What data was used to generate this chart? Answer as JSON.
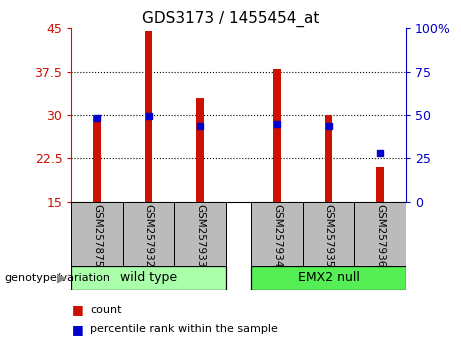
{
  "title": "GDS3173 / 1455454_at",
  "categories": [
    "GSM257875",
    "GSM257932",
    "GSM257933",
    "GSM257934",
    "GSM257935",
    "GSM257936"
  ],
  "bar_values": [
    30.0,
    44.5,
    33.0,
    38.0,
    30.0,
    21.0
  ],
  "percentile_values": [
    48.5,
    49.5,
    43.5,
    45.0,
    43.5,
    28.0
  ],
  "ylim_left": [
    15,
    45
  ],
  "ylim_right": [
    0,
    100
  ],
  "yticks_left": [
    15,
    22.5,
    30,
    37.5,
    45
  ],
  "yticks_right": [
    0,
    25,
    50,
    75,
    100
  ],
  "bar_color": "#cc1100",
  "marker_color": "#0000cc",
  "group1_label": "wild type",
  "group2_label": "EMX2 null",
  "group1_color": "#aaffaa",
  "group2_color": "#55ee55",
  "group1_indices": [
    0,
    1,
    2
  ],
  "group2_indices": [
    3,
    4,
    5
  ],
  "xlabel_left": "genotype/variation",
  "legend_count": "count",
  "legend_percentile": "percentile rank within the sample",
  "tick_color_left": "#cc1100",
  "tick_color_right": "#0000cc",
  "xtick_bg": "#bbbbbb",
  "bar_width": 0.15,
  "x_positions": [
    0,
    1,
    2,
    3.5,
    4.5,
    5.5
  ],
  "x_gap_before": 3,
  "xlim": [
    -0.5,
    6.0
  ]
}
